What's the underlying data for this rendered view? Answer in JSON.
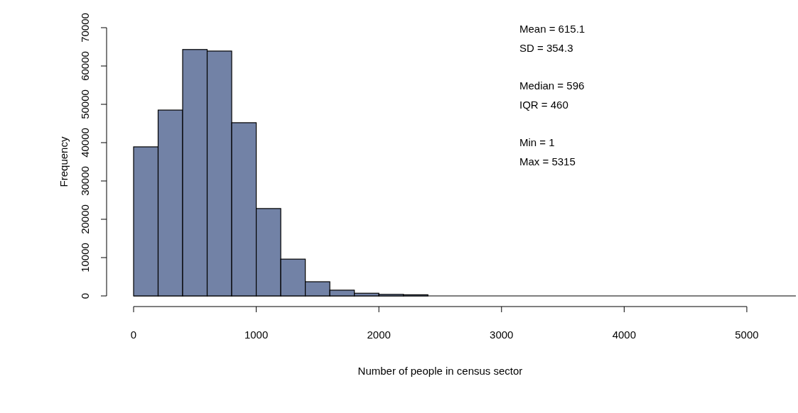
{
  "chart_data": {
    "type": "histogram",
    "xlabel": "Number of people in census sector",
    "ylabel": "Frequency",
    "bins": [
      0,
      200,
      400,
      600,
      800,
      1000,
      1200,
      1400,
      1600,
      1800,
      2000,
      2200,
      2400,
      2600,
      2800,
      3000,
      3200,
      3400,
      3600,
      3800,
      4000,
      4200,
      4400,
      4600,
      4800,
      5000,
      5200,
      5400
    ],
    "values": [
      38900,
      48500,
      64300,
      63900,
      45200,
      22800,
      9600,
      3700,
      1500,
      700,
      400,
      300,
      0,
      0,
      0,
      0,
      0,
      0,
      0,
      0,
      0,
      0,
      0,
      0,
      0,
      0,
      0
    ],
    "color": "#7282a6",
    "xlim": [
      0,
      5400
    ],
    "xticks": [
      0,
      1000,
      2000,
      3000,
      4000,
      5000
    ],
    "ylim": [
      0,
      70000
    ],
    "yticks": [
      0,
      10000,
      20000,
      30000,
      40000,
      50000,
      60000,
      70000
    ],
    "annotations": [
      "Mean = 615.1",
      "SD = 354.3",
      "Median = 596",
      "IQR = 460",
      "Min = 1",
      "Max = 5315"
    ]
  }
}
